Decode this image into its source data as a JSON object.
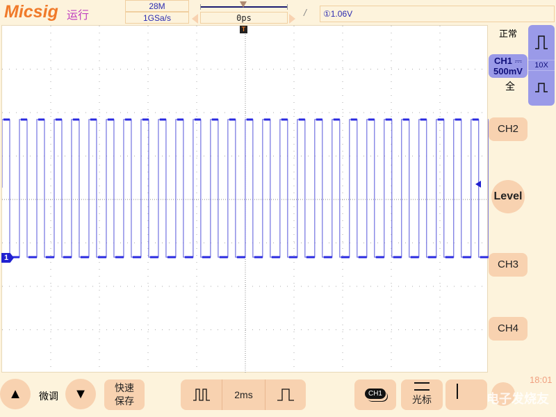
{
  "header": {
    "brand": "Micsig",
    "run_state": "运行",
    "memory_depth": "28M",
    "sample_rate": "1GSa/s",
    "trigger_offset": "0ps",
    "trigger_edge": "/",
    "trigger_level": "①1.06V"
  },
  "right_panel": {
    "trigger_mode": "正常",
    "ch1_label": "CH1",
    "ch1_coupling": "⎓",
    "ch1_scale": "500mV",
    "bandwidth": "全",
    "probe_ratio": "10X",
    "ch2": "CH2",
    "ch3": "CH3",
    "ch4": "CH4",
    "level": "Level",
    "time": "18:01"
  },
  "bottom": {
    "fine_adjust": "微调",
    "quick_save_1": "快速",
    "quick_save_2": "保存",
    "timebase": "2ms",
    "ch_select": "CH1",
    "cursor": "光标",
    "watermark": "电子发烧友"
  },
  "waveform": {
    "channel_marker": "1",
    "color": "#2a2ae0",
    "period_divisions": 0.357,
    "duty": 0.44
  },
  "colors": {
    "accent": "#f07a2a",
    "channel1": "#2a2ae0",
    "button": "#f8d2b0",
    "ch1_panel": "#9a9ae8"
  }
}
